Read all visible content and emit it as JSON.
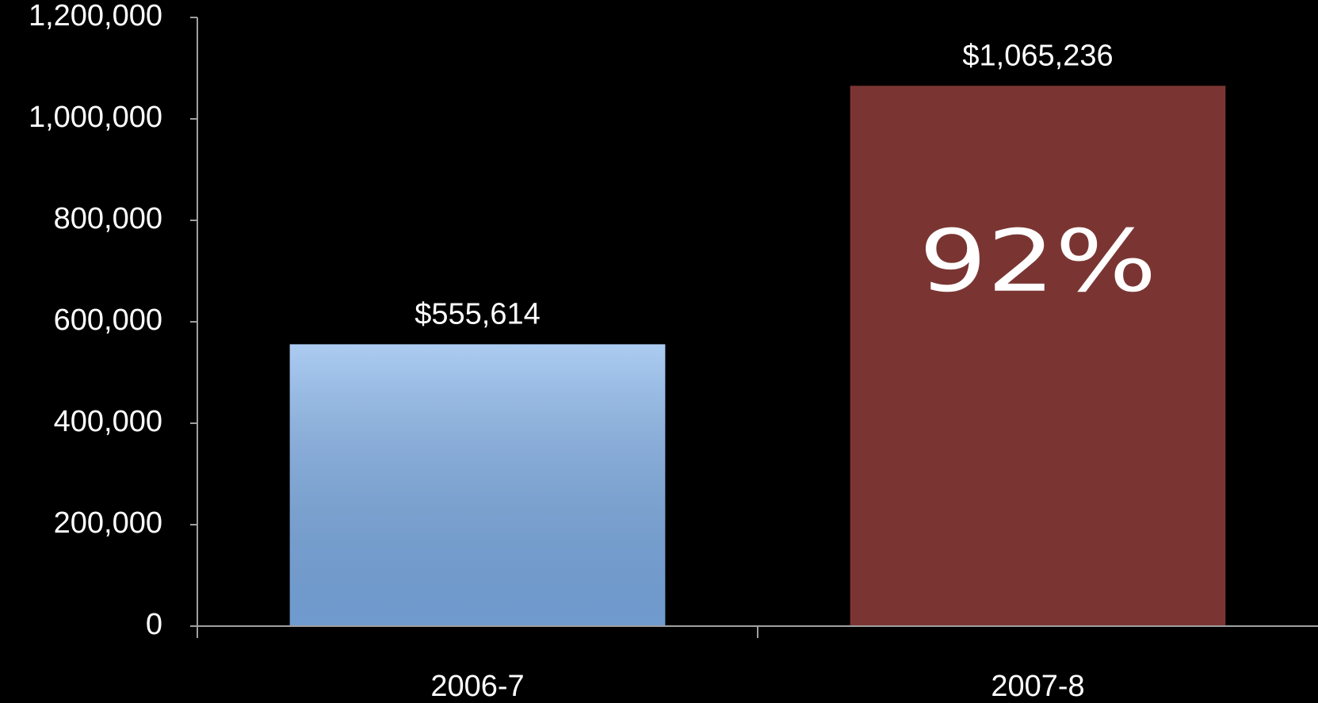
{
  "chart_data": {
    "type": "bar",
    "categories": [
      "2006-7",
      "2007-8"
    ],
    "values": [
      555614,
      1065236
    ],
    "value_labels": [
      "$555,614",
      "$1,065,236"
    ],
    "colors": [
      "#7fb0ea",
      "#7a3532"
    ],
    "annotation": "92%",
    "ylim": [
      0,
      1200000
    ],
    "yticks": [
      0,
      {
        "value": 200000,
        "label": "200,000"
      },
      {
        "value": 400000,
        "label": "400,000"
      },
      {
        "value": 600000,
        "label": "600,000"
      },
      {
        "value": 800000,
        "label": "800,000"
      },
      {
        "value": 1000000,
        "label": "1,000,000"
      },
      {
        "value": 1200000,
        "label": "1,200,000"
      }
    ],
    "grid": false
  }
}
